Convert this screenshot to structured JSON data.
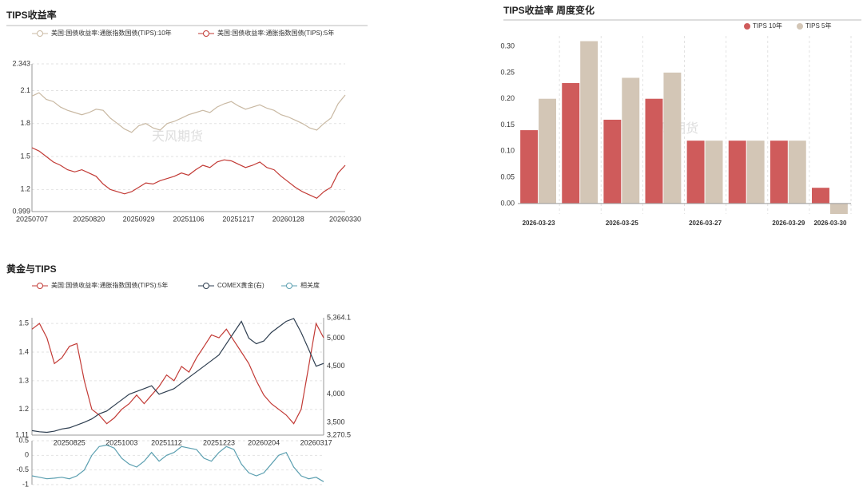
{
  "chart_data": [
    {
      "type": "line",
      "title": "TIPS收益率",
      "watermark": "天风期货",
      "categories": [
        "20250707",
        null,
        null,
        null,
        null,
        null,
        null,
        null,
        "20250820",
        null,
        null,
        null,
        null,
        null,
        null,
        "20250929",
        null,
        null,
        null,
        null,
        null,
        null,
        "20251106",
        null,
        null,
        null,
        null,
        null,
        null,
        "20251217",
        null,
        null,
        null,
        null,
        null,
        null,
        "20260128",
        null,
        null,
        null,
        null,
        null,
        null,
        null,
        "20260330"
      ],
      "series": [
        {
          "name": "美国:国债收益率:通胀指数国债(TIPS):10年",
          "color": "#c9b9a3",
          "values": [
            2.05,
            2.08,
            2.02,
            2.0,
            1.95,
            1.92,
            1.9,
            1.88,
            1.9,
            1.93,
            1.92,
            1.85,
            1.8,
            1.75,
            1.72,
            1.78,
            1.8,
            1.76,
            1.74,
            1.8,
            1.82,
            1.85,
            1.88,
            1.9,
            1.92,
            1.9,
            1.95,
            1.98,
            2.0,
            1.96,
            1.93,
            1.95,
            1.97,
            1.94,
            1.92,
            1.88,
            1.86,
            1.83,
            1.8,
            1.76,
            1.74,
            1.8,
            1.85,
            1.98,
            2.06
          ]
        },
        {
          "name": "美国:国债收益率:通胀指数国债(TIPS):5年",
          "color": "#c23a35",
          "values": [
            1.58,
            1.55,
            1.5,
            1.45,
            1.42,
            1.38,
            1.36,
            1.38,
            1.35,
            1.32,
            1.25,
            1.2,
            1.18,
            1.16,
            1.18,
            1.22,
            1.26,
            1.25,
            1.28,
            1.3,
            1.32,
            1.35,
            1.33,
            1.38,
            1.42,
            1.4,
            1.45,
            1.47,
            1.46,
            1.43,
            1.4,
            1.42,
            1.45,
            1.4,
            1.38,
            1.32,
            1.27,
            1.22,
            1.18,
            1.15,
            1.12,
            1.18,
            1.22,
            1.35,
            1.42
          ]
        }
      ],
      "ylim": [
        0.999,
        2.343
      ],
      "yticks": [
        0.999,
        1.2,
        1.5,
        1.8,
        2.1,
        2.343
      ],
      "grid": true
    },
    {
      "type": "bar",
      "title": "TIPS收益率 周度变化",
      "watermark": "天风期货",
      "categories": [
        "2026-03-23",
        null,
        "2026-03-25",
        null,
        "2026-03-27",
        null,
        "2026-03-29",
        "2026-03-30"
      ],
      "series": [
        {
          "name": "TIPS 10年",
          "color": "#cf5b5b",
          "values": [
            0.14,
            0.23,
            0.16,
            0.2,
            0.12,
            0.12,
            0.12,
            0.03
          ]
        },
        {
          "name": "TIPS 5年",
          "color": "#d3c6b6",
          "values": [
            0.2,
            0.31,
            0.24,
            0.25,
            0.12,
            0.12,
            0.12,
            -0.02
          ]
        }
      ],
      "ylim": [
        -0.02,
        0.32
      ],
      "yticks": [
        {
          "value": 0,
          "label": "0.00"
        },
        {
          "value": 0.05,
          "label": "0.05"
        },
        {
          "value": 0.1,
          "label": "0.10"
        },
        {
          "value": 0.15,
          "label": "0.15"
        },
        {
          "value": 0.2,
          "label": "0.20"
        },
        {
          "value": 0.25,
          "label": "0.25"
        },
        {
          "value": 0.3,
          "label": "0.30"
        }
      ],
      "grid": true,
      "legend": "top-right"
    },
    {
      "type": "line",
      "title": "黄金与TIPS",
      "categories": [
        null,
        null,
        null,
        null,
        null,
        "20250825",
        null,
        null,
        null,
        null,
        null,
        null,
        "20251003",
        null,
        null,
        null,
        null,
        null,
        "20251112",
        null,
        null,
        null,
        null,
        null,
        null,
        "20251223",
        null,
        null,
        null,
        null,
        null,
        "20260204",
        null,
        null,
        null,
        null,
        null,
        null,
        "20260317",
        null
      ],
      "series": [
        {
          "name": "美国:国债收益率:通胀指数国债(TIPS):5年",
          "color": "#c23a35",
          "values": [
            1.48,
            1.5,
            1.45,
            1.36,
            1.38,
            1.42,
            1.43,
            1.3,
            1.2,
            1.18,
            1.15,
            1.17,
            1.2,
            1.22,
            1.25,
            1.22,
            1.25,
            1.28,
            1.32,
            1.3,
            1.35,
            1.33,
            1.38,
            1.42,
            1.46,
            1.45,
            1.48,
            1.44,
            1.4,
            1.36,
            1.3,
            1.25,
            1.22,
            1.2,
            1.18,
            1.15,
            1.2,
            1.35,
            1.5,
            1.45
          ]
        },
        {
          "name": "COMEX黄金(右)",
          "color": "#2e3e50",
          "axis": "y2",
          "values": [
            3350,
            3330,
            3320,
            3340,
            3380,
            3400,
            3450,
            3500,
            3560,
            3650,
            3700,
            3800,
            3900,
            4000,
            4050,
            4100,
            4150,
            4000,
            4050,
            4100,
            4200,
            4300,
            4400,
            4500,
            4600,
            4700,
            4900,
            5100,
            5300,
            5000,
            4900,
            4950,
            5100,
            5200,
            5300,
            5350,
            5100,
            4800,
            4500,
            4550
          ]
        },
        {
          "name": "相关度",
          "color": "#5b9fb0",
          "axis": "y3",
          "values": [
            -0.7,
            -0.75,
            -0.8,
            -0.78,
            -0.75,
            -0.8,
            -0.7,
            -0.5,
            0,
            0.3,
            0.35,
            0.25,
            -0.1,
            -0.3,
            -0.4,
            -0.2,
            0.1,
            -0.2,
            0,
            0.1,
            0.3,
            0.25,
            0.2,
            -0.1,
            -0.2,
            0.1,
            0.3,
            0.2,
            -0.3,
            -0.6,
            -0.7,
            -0.6,
            -0.3,
            0,
            0.1,
            -0.4,
            -0.7,
            -0.8,
            -0.75,
            -0.9
          ]
        }
      ],
      "ylim": [
        1.11,
        1.52
      ],
      "yticks": [
        1.11,
        1.2,
        1.3,
        1.4,
        1.5
      ],
      "y2lim": [
        3270.5,
        5364.1
      ],
      "y2ticks": [
        {
          "value": 3270.5,
          "label": "3,270.5"
        },
        {
          "value": 3500,
          "label": "3,500"
        },
        {
          "value": 4000,
          "label": "4,000"
        },
        {
          "value": 4500,
          "label": "4,500"
        },
        {
          "value": 5000,
          "label": "5,000"
        },
        {
          "value": 5364.1,
          "label": "5,364.1"
        }
      ],
      "y3lim": [
        -1,
        0.5
      ],
      "y3ticks": [
        0.5,
        0,
        -0.5,
        -1
      ],
      "grid": true
    }
  ]
}
